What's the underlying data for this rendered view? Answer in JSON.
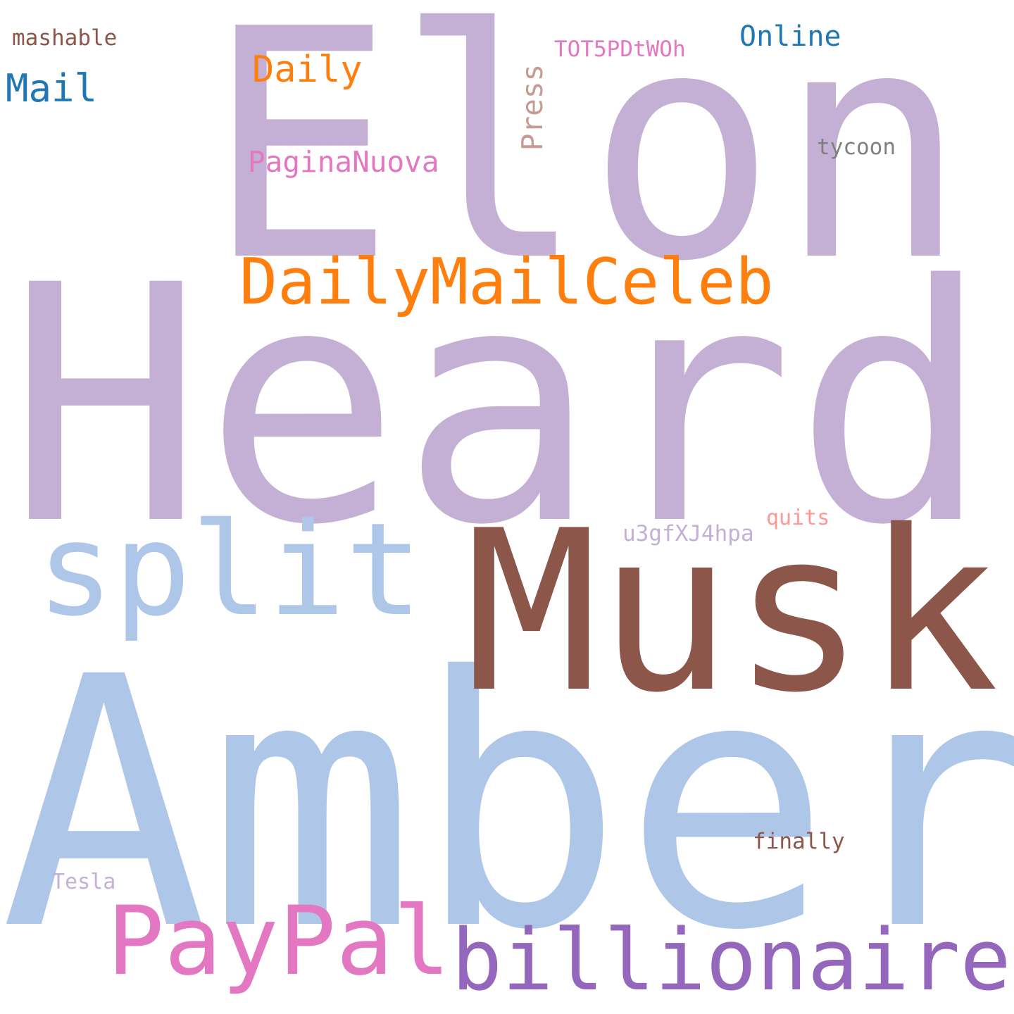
{
  "words": [
    {
      "text": "Amber",
      "color": "#aec7e8",
      "rotated": false
    },
    {
      "text": "Heard",
      "color": "#c5b0d5",
      "rotated": false
    },
    {
      "text": "Elon",
      "color": "#c5b0d5",
      "rotated": false
    },
    {
      "text": "Musk",
      "color": "#8c564b",
      "rotated": false
    },
    {
      "text": "split",
      "color": "#aec7e8",
      "rotated": false
    },
    {
      "text": "billionaire",
      "color": "#9467bd",
      "rotated": false
    },
    {
      "text": "PayPal",
      "color": "#e377c2",
      "rotated": false
    },
    {
      "text": "DailyMailCeleb",
      "color": "#ff7f0e",
      "rotated": false
    },
    {
      "text": "Daily",
      "color": "#ff7f0e",
      "rotated": false
    },
    {
      "text": "Mail",
      "color": "#1f77b4",
      "rotated": false
    },
    {
      "text": "Online",
      "color": "#1f77b4",
      "rotated": false
    },
    {
      "text": "PaginaNuova",
      "color": "#e377c2",
      "rotated": false
    },
    {
      "text": "Press",
      "color": "#c49c94",
      "rotated": true
    },
    {
      "text": "TOT5PDtWOh",
      "color": "#e377c2",
      "rotated": false
    },
    {
      "text": "tycoon",
      "color": "#7f7f7f",
      "rotated": false
    },
    {
      "text": "mashable",
      "color": "#8c564b",
      "rotated": false
    },
    {
      "text": "u3gfXJ4hpa",
      "color": "#c5b0d5",
      "rotated": false
    },
    {
      "text": "quits",
      "color": "#ff9896",
      "rotated": false
    },
    {
      "text": "finally",
      "color": "#8c564b",
      "rotated": false
    },
    {
      "text": "Tesla",
      "color": "#c5b0d5",
      "rotated": false
    }
  ]
}
